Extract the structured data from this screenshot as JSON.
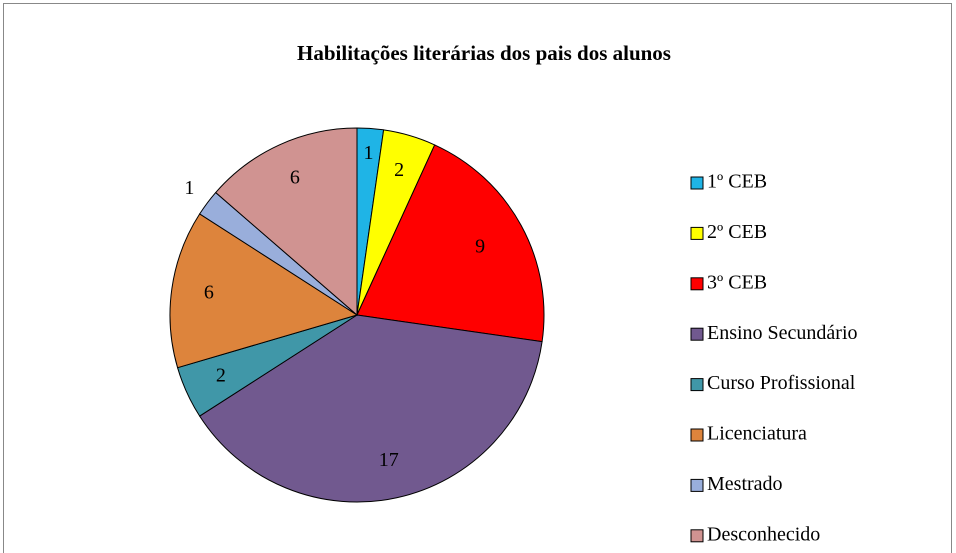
{
  "chart_data": {
    "type": "pie",
    "title": "Habilitações literárias dos pais dos alunos",
    "categories": [
      "1º CEB",
      "2º CEB",
      "3º CEB",
      "Ensino Secundário",
      "Curso Profissional",
      "Licenciatura",
      "Mestrado",
      "Desconhecido"
    ],
    "values": [
      1,
      2,
      9,
      17,
      2,
      6,
      1,
      6
    ],
    "colors": [
      "#1fb4e6",
      "#ffff00",
      "#ff0000",
      "#71598f",
      "#4097a8",
      "#dd843c",
      "#99aedb",
      "#d09391"
    ],
    "legend": "right"
  }
}
